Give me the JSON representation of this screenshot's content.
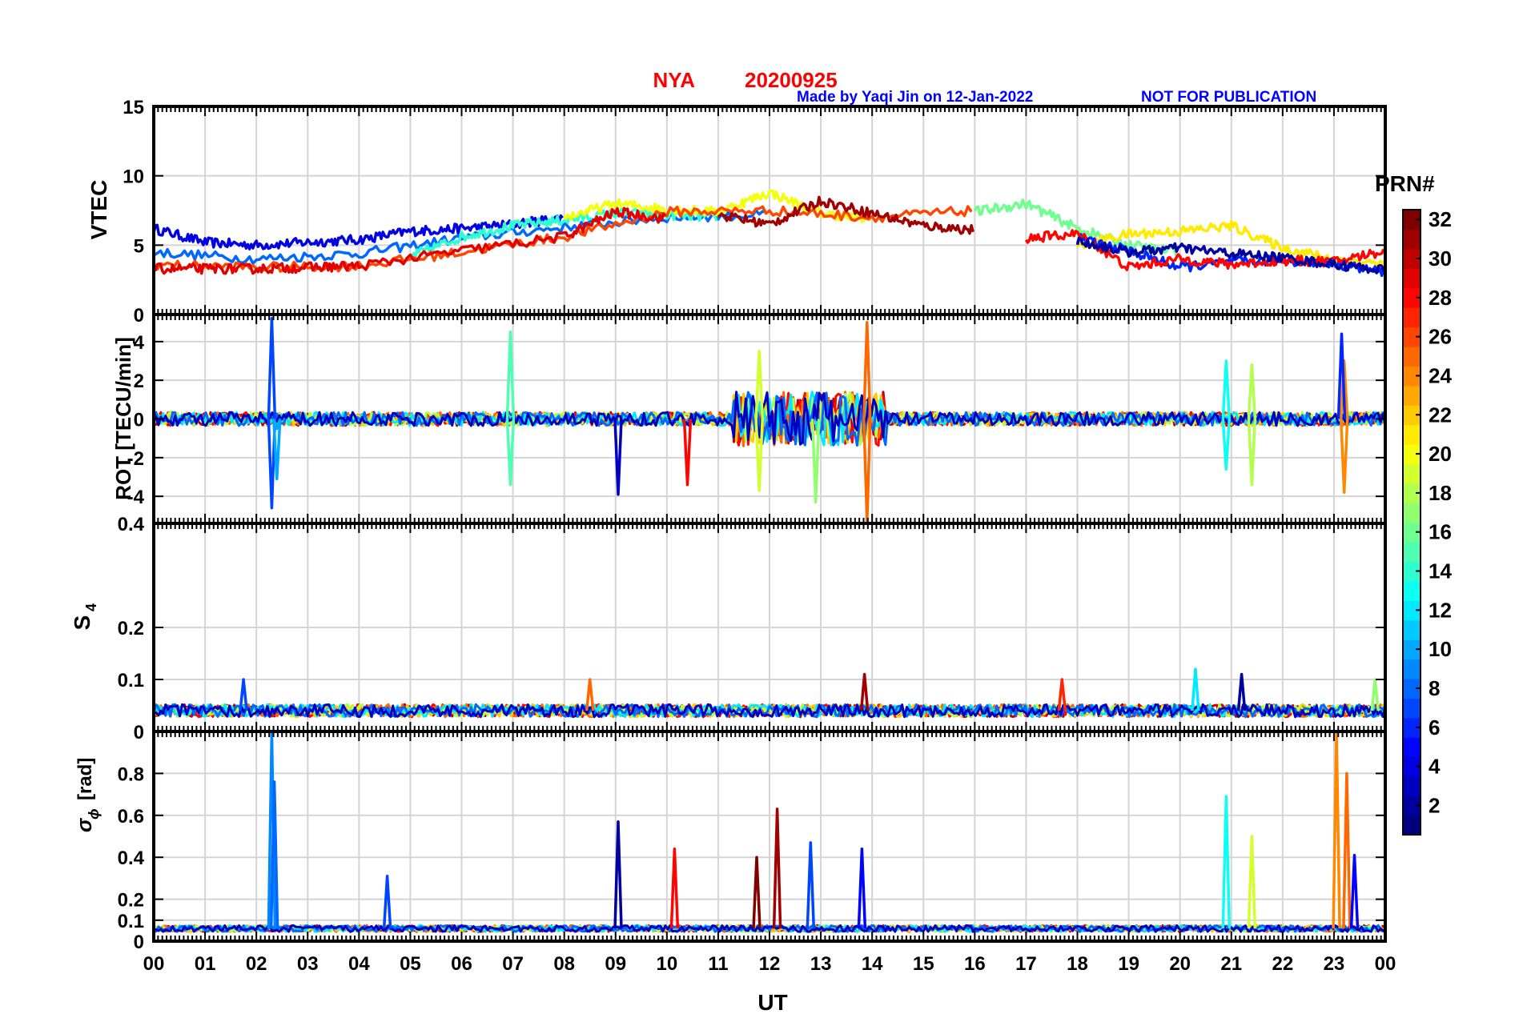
{
  "header": {
    "station": "NYA",
    "date": "20200925",
    "made_by": "Made by Yaqi Jin on 12-Jan-2022",
    "notice": "NOT FOR PUBLICATION",
    "title_color": "#ff0000",
    "note_color": "#0000ff"
  },
  "chart_data": [
    {
      "type": "line",
      "id": "vtec",
      "ylabel": "VTEC",
      "ylim": [
        0,
        15
      ],
      "yticks": [
        0,
        5,
        10,
        15
      ],
      "ytick_labels": [
        "0",
        "5",
        "10",
        "15"
      ],
      "xlim": [
        0,
        24
      ],
      "grid": true,
      "description_series": "32 PRN traces, colored by PRN (jet colormap)",
      "series": [
        {
          "prn": 4,
          "x": [
            0,
            1,
            2,
            3,
            4,
            5,
            6,
            7,
            8
          ],
          "values": [
            6.2,
            5.2,
            5.0,
            5.2,
            5.4,
            6.0,
            6.2,
            6.5,
            7.0
          ]
        },
        {
          "prn": 8,
          "x": [
            0,
            2,
            4,
            6,
            8,
            10,
            12
          ],
          "values": [
            4.5,
            4.0,
            4.4,
            5.5,
            6.3,
            7.0,
            7.2
          ]
        },
        {
          "prn": 14,
          "x": [
            5,
            6,
            7,
            8,
            9,
            10,
            11
          ],
          "values": [
            4.2,
            5.6,
            6.4,
            6.8,
            7.3,
            7.2,
            7.0
          ]
        },
        {
          "prn": 20,
          "x": [
            8,
            9,
            10,
            11,
            12,
            13,
            14
          ],
          "values": [
            7.0,
            8.0,
            7.6,
            7.4,
            8.8,
            7.3,
            6.8
          ]
        },
        {
          "prn": 26,
          "x": [
            0,
            2,
            4,
            6,
            8,
            10,
            12,
            14,
            16
          ],
          "values": [
            3.6,
            3.4,
            3.5,
            4.5,
            5.6,
            7.4,
            7.5,
            7.0,
            7.5
          ]
        },
        {
          "prn": 29,
          "x": [
            0,
            1,
            2,
            3,
            4,
            6,
            8,
            9,
            10
          ],
          "values": [
            3.3,
            3.3,
            3.3,
            3.4,
            3.5,
            4.6,
            5.6,
            7.4,
            6.9
          ]
        },
        {
          "prn": 31,
          "x": [
            11,
            12,
            13,
            14,
            15,
            16
          ],
          "values": [
            7.2,
            6.5,
            8.2,
            7.3,
            6.4,
            6.1
          ]
        },
        {
          "prn": 16,
          "x": [
            16,
            17,
            18,
            19,
            20
          ],
          "values": [
            7.4,
            8.0,
            6.2,
            5.0,
            4.5
          ]
        },
        {
          "prn": 21,
          "x": [
            18,
            19,
            20,
            21,
            22,
            23,
            24
          ],
          "values": [
            5.0,
            5.8,
            6.0,
            6.4,
            4.8,
            4.0,
            3.6
          ]
        },
        {
          "prn": 6,
          "x": [
            18,
            19,
            20,
            21,
            22,
            23,
            24
          ],
          "values": [
            5.5,
            4.6,
            3.4,
            3.8,
            3.9,
            3.7,
            3.0
          ]
        },
        {
          "prn": 28,
          "x": [
            17,
            18,
            19,
            20,
            21,
            22,
            23,
            24
          ],
          "values": [
            5.5,
            5.8,
            3.4,
            4.0,
            3.6,
            3.9,
            3.8,
            4.6
          ]
        },
        {
          "prn": 2,
          "x": [
            18,
            19,
            20,
            21,
            22,
            23,
            24
          ],
          "values": [
            5.3,
            4.5,
            4.8,
            4.4,
            4.1,
            3.6,
            3.2
          ]
        }
      ]
    },
    {
      "type": "line",
      "id": "rot",
      "ylabel": "ROT [TECU/min]",
      "ylim": [
        -5.4,
        5.4
      ],
      "yticks": [
        -4,
        -2,
        0,
        2,
        4
      ],
      "ytick_labels": [
        "-4",
        "-2",
        "0",
        "2",
        "4"
      ],
      "xlim": [
        0,
        24
      ],
      "grid": true,
      "spikes": [
        {
          "prn": 7,
          "x": 2.3,
          "values": [
            5.2,
            -4.6
          ]
        },
        {
          "prn": 10,
          "x": 2.4,
          "values": [
            -0.5,
            -3.1
          ]
        },
        {
          "prn": 15,
          "x": 6.95,
          "values": [
            4.5,
            -3.4
          ]
        },
        {
          "prn": 3,
          "x": 9.05,
          "values": [
            -3.9
          ]
        },
        {
          "prn": 28,
          "x": 10.4,
          "values": [
            -3.4
          ]
        },
        {
          "prn": 19,
          "x": 11.8,
          "values": [
            3.5,
            -3.7
          ]
        },
        {
          "prn": 17,
          "x": 12.9,
          "values": [
            -4.3
          ]
        },
        {
          "prn": 25,
          "x": 13.9,
          "values": [
            5.0,
            -5.3
          ]
        },
        {
          "prn": 13,
          "x": 20.9,
          "values": [
            3.0,
            -2.6
          ]
        },
        {
          "prn": 18,
          "x": 21.4,
          "values": [
            2.8,
            -3.4
          ]
        },
        {
          "prn": 24,
          "x": 23.2,
          "values": [
            3.0,
            -3.8
          ]
        },
        {
          "prn": 6,
          "x": 23.15,
          "values": [
            4.4
          ]
        }
      ],
      "baseline_value": 0
    },
    {
      "type": "line",
      "id": "s4",
      "ylabel": "S4",
      "ylim": [
        0,
        0.4
      ],
      "yticks": [
        0,
        0.1,
        0.2,
        0.4
      ],
      "ytick_labels": [
        "0",
        "0.1",
        "0.2",
        "0.4"
      ],
      "xlim": [
        0,
        24
      ],
      "grid": true,
      "peaks": [
        {
          "prn": 7,
          "x": 1.75,
          "value": 0.1
        },
        {
          "prn": 25,
          "x": 8.5,
          "value": 0.1
        },
        {
          "prn": 31,
          "x": 13.85,
          "value": 0.11
        },
        {
          "prn": 27,
          "x": 17.7,
          "value": 0.1
        },
        {
          "prn": 12,
          "x": 20.3,
          "value": 0.12
        },
        {
          "prn": 2,
          "x": 21.2,
          "value": 0.11
        },
        {
          "prn": 17,
          "x": 23.8,
          "value": 0.1
        }
      ],
      "baseline_value": 0.04
    },
    {
      "type": "line",
      "id": "sigma_phi",
      "ylabel": "σφ [rad]",
      "ylim": [
        0,
        1.0
      ],
      "yticks": [
        0,
        0.1,
        0.2,
        0.4,
        0.6,
        0.8
      ],
      "ytick_labels": [
        "0",
        "0.1",
        "0.2",
        "0.4",
        "0.6",
        "0.8"
      ],
      "xlim": [
        0,
        24
      ],
      "xticks": [
        0,
        1,
        2,
        3,
        4,
        5,
        6,
        7,
        8,
        9,
        10,
        11,
        12,
        13,
        14,
        15,
        16,
        17,
        18,
        19,
        20,
        21,
        22,
        23,
        24
      ],
      "xtick_labels": [
        "00",
        "01",
        "02",
        "03",
        "04",
        "05",
        "06",
        "07",
        "08",
        "09",
        "10",
        "11",
        "12",
        "13",
        "14",
        "15",
        "16",
        "17",
        "18",
        "19",
        "20",
        "21",
        "22",
        "23",
        "00"
      ],
      "xlabel": "UT",
      "grid": true,
      "peaks": [
        {
          "prn": 9,
          "x": 2.3,
          "value": 1.0
        },
        {
          "prn": 8,
          "x": 2.35,
          "value": 0.76
        },
        {
          "prn": 7,
          "x": 4.55,
          "value": 0.31
        },
        {
          "prn": 2,
          "x": 9.05,
          "value": 0.57
        },
        {
          "prn": 28,
          "x": 10.15,
          "value": 0.44
        },
        {
          "prn": 32,
          "x": 11.75,
          "value": 0.4
        },
        {
          "prn": 31,
          "x": 12.15,
          "value": 0.63
        },
        {
          "prn": 7,
          "x": 12.8,
          "value": 0.47
        },
        {
          "prn": 5,
          "x": 13.8,
          "value": 0.44
        },
        {
          "prn": 13,
          "x": 20.9,
          "value": 0.69
        },
        {
          "prn": 19,
          "x": 21.4,
          "value": 0.5
        },
        {
          "prn": 24,
          "x": 23.05,
          "value": 1.0
        },
        {
          "prn": 25,
          "x": 23.25,
          "value": 0.8
        },
        {
          "prn": 5,
          "x": 23.4,
          "value": 0.41
        }
      ],
      "baseline_value": 0.06
    }
  ],
  "colorbar": {
    "label": "PRN#",
    "range": [
      1,
      32
    ],
    "tick_labels": [
      "2",
      "4",
      "6",
      "8",
      "10",
      "12",
      "14",
      "16",
      "18",
      "20",
      "22",
      "24",
      "26",
      "28",
      "30",
      "32"
    ],
    "ticks": [
      2,
      4,
      6,
      8,
      10,
      12,
      14,
      16,
      18,
      20,
      22,
      24,
      26,
      28,
      30,
      32
    ]
  }
}
